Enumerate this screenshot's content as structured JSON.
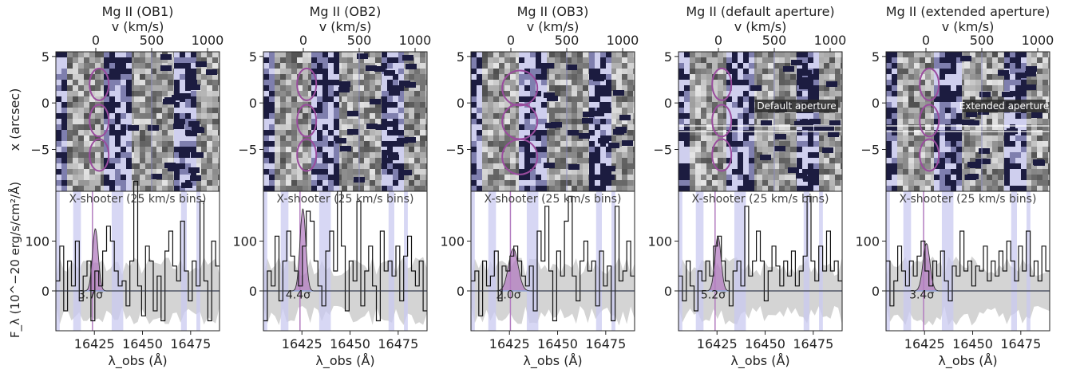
{
  "figure": {
    "colors": {
      "ellipse": "#9a4c9e",
      "absorption_band": "#c9c9f0",
      "noise_band": "#d4d4d4",
      "fill_line": "#b37cc0",
      "zero_line": "#8da0d0",
      "dark_pixel": "#1c1c40",
      "light_pixel": "#cfcfee"
    },
    "shared_labels": {
      "top_axis_label": "v (km/s)",
      "y_label_top": "x (arcsec)",
      "y_label_bottom": "F_λ (10^−20 erg/s/cm²/Å)",
      "x_label_bottom": "λ_obs (Å)",
      "inset_label": "X-shooter (25 km/s bins)"
    }
  },
  "chart_data": [
    {
      "type": "line",
      "title": "Mg II (OB1)",
      "significance": "3.7σ",
      "aperture_label": "",
      "top_axis": {
        "label": "v (km/s)",
        "ticks": [
          0,
          500,
          1000
        ]
      },
      "image_panel": {
        "ylabel": "x (arcsec)",
        "ylim": [
          -9.5,
          5.5
        ],
        "yticks": [
          5,
          0,
          -5
        ],
        "apertures": [
          {
            "vel": 30,
            "x": 2.0
          },
          {
            "vel": 30,
            "x": -1.9
          },
          {
            "vel": 30,
            "x": -5.6
          }
        ]
      },
      "spectrum_panel": {
        "xlabel": "λ_obs (Å)",
        "ylabel": "F_λ (10^−20 erg/s/cm²/Å)",
        "xlim": [
          16405,
          16490
        ],
        "ylim": [
          -80,
          200
        ],
        "xticks": [
          16425,
          16450,
          16475
        ],
        "yticks": [
          0,
          100
        ],
        "line_center": 16425.5,
        "line_peak": 125,
        "line_sigma": 1.5,
        "flux": [
          20,
          90,
          -40,
          60,
          10,
          100,
          -20,
          30,
          60,
          -60,
          40,
          10,
          80,
          130,
          100,
          40,
          10,
          20,
          -30,
          60,
          220,
          10,
          -50,
          90,
          60,
          -40,
          30,
          -60,
          80,
          120,
          50,
          20,
          140,
          40,
          -20,
          60,
          10,
          180,
          20,
          -60,
          100,
          50
        ]
      }
    },
    {
      "type": "line",
      "title": "Mg II (OB2)",
      "significance": "4.4σ",
      "aperture_label": "",
      "top_axis": {
        "label": "v (km/s)",
        "ticks": [
          0,
          500,
          1000
        ]
      },
      "image_panel": {
        "ylabel": "",
        "ylim": [
          -9.5,
          5.5
        ],
        "yticks": [
          5,
          0,
          -5
        ],
        "apertures": [
          {
            "vel": 30,
            "x": 2.0
          },
          {
            "vel": 30,
            "x": -1.9
          },
          {
            "vel": 30,
            "x": -5.6
          }
        ]
      },
      "spectrum_panel": {
        "xlabel": "λ_obs (Å)",
        "ylabel": "",
        "xlim": [
          16405,
          16490
        ],
        "ylim": [
          -80,
          200
        ],
        "xticks": [
          16425,
          16450,
          16475
        ],
        "yticks": [
          0,
          100
        ],
        "line_center": 16425.5,
        "line_peak": 165,
        "line_sigma": 1.5,
        "flux": [
          -60,
          40,
          10,
          110,
          -20,
          60,
          120,
          70,
          40,
          10,
          90,
          160,
          140,
          60,
          10,
          -30,
          80,
          120,
          40,
          200,
          90,
          -40,
          60,
          20,
          180,
          -30,
          40,
          90,
          10,
          -60,
          120,
          40,
          60,
          30,
          90,
          -20,
          70,
          110,
          40,
          10,
          60,
          -40
        ]
      }
    },
    {
      "type": "line",
      "title": "Mg II (OB3)",
      "significance": "2.0σ",
      "aperture_label": "",
      "top_axis": {
        "label": "v (km/s)",
        "ticks": [
          0,
          500,
          1000
        ]
      },
      "image_panel": {
        "ylabel": "",
        "ylim": [
          -9.5,
          5.5
        ],
        "yticks": [
          5,
          0,
          -5
        ],
        "apertures": [
          {
            "vel": 80,
            "x": 1.6
          },
          {
            "vel": 80,
            "x": -2.0
          },
          {
            "vel": 80,
            "x": -5.8
          }
        ]
      },
      "spectrum_panel": {
        "xlabel": "λ_obs (Å)",
        "ylabel": "",
        "xlim": [
          16405,
          16490
        ],
        "ylim": [
          -80,
          200
        ],
        "xticks": [
          16425,
          16450,
          16475
        ],
        "yticks": [
          0,
          100
        ],
        "line_center": 16427.0,
        "line_peak": 85,
        "line_sigma": 2.5,
        "flux": [
          20,
          40,
          -50,
          60,
          10,
          30,
          80,
          -20,
          50,
          40,
          70,
          90,
          60,
          30,
          10,
          50,
          -40,
          120,
          60,
          170,
          40,
          -60,
          80,
          30,
          140,
          190,
          30,
          -20,
          60,
          100,
          40,
          60,
          -30,
          80,
          10,
          50,
          -60,
          170,
          20,
          40,
          100,
          30
        ]
      }
    },
    {
      "type": "line",
      "title": "Mg II (default aperture)",
      "significance": "5.2σ",
      "aperture_label": "Default aperture",
      "top_axis": {
        "label": "v (km/s)",
        "ticks": [
          0,
          500,
          1000
        ]
      },
      "image_panel": {
        "ylabel": "",
        "ylim": [
          -9.5,
          5.5
        ],
        "yticks": [
          5,
          0,
          -5
        ],
        "apertures": [
          {
            "vel": 30,
            "x": 2.0
          },
          {
            "vel": 30,
            "x": -1.9
          },
          {
            "vel": 30,
            "x": -5.6
          }
        ]
      },
      "spectrum_panel": {
        "xlabel": "λ_obs (Å)",
        "ylabel": "",
        "xlim": [
          16405,
          16490
        ],
        "ylim": [
          -80,
          200
        ],
        "xticks": [
          16425,
          16450,
          16475
        ],
        "yticks": [
          0,
          100
        ],
        "line_center": 16425.5,
        "line_peak": 110,
        "line_sigma": 1.6,
        "flux": [
          30,
          -20,
          60,
          10,
          -40,
          40,
          20,
          60,
          30,
          90,
          110,
          60,
          20,
          -30,
          40,
          60,
          10,
          170,
          30,
          60,
          120,
          60,
          -20,
          40,
          90,
          50,
          10,
          60,
          30,
          80,
          10,
          40,
          70,
          190,
          60,
          20,
          90,
          40,
          120,
          40,
          60,
          20
        ]
      }
    },
    {
      "type": "line",
      "title": "Mg II (extended aperture)",
      "significance": "3.4σ",
      "aperture_label": "Extended aperture",
      "top_axis": {
        "label": "v (km/s)",
        "ticks": [
          0,
          500,
          1000
        ]
      },
      "image_panel": {
        "ylabel": "",
        "ylim": [
          -9.5,
          5.5
        ],
        "yticks": [
          5,
          0,
          -5
        ],
        "apertures": [
          {
            "vel": 30,
            "x": 2.0
          },
          {
            "vel": 30,
            "x": -1.9
          },
          {
            "vel": 30,
            "x": -5.6
          }
        ]
      },
      "spectrum_panel": {
        "xlabel": "λ_obs (Å)",
        "ylabel": "",
        "xlim": [
          16405,
          16490
        ],
        "ylim": [
          -80,
          200
        ],
        "xticks": [
          16425,
          16450,
          16475
        ],
        "yticks": [
          0,
          100
        ],
        "line_center": 16426.0,
        "line_peak": 95,
        "line_sigma": 1.8,
        "flux": [
          60,
          -30,
          20,
          90,
          40,
          10,
          60,
          30,
          70,
          100,
          40,
          10,
          60,
          30,
          80,
          20,
          -20,
          50,
          30,
          120,
          40,
          60,
          10,
          50,
          40,
          90,
          20,
          60,
          30,
          80,
          40,
          100,
          60,
          20,
          90,
          40,
          120,
          30,
          60,
          20,
          90,
          40
        ]
      }
    }
  ]
}
